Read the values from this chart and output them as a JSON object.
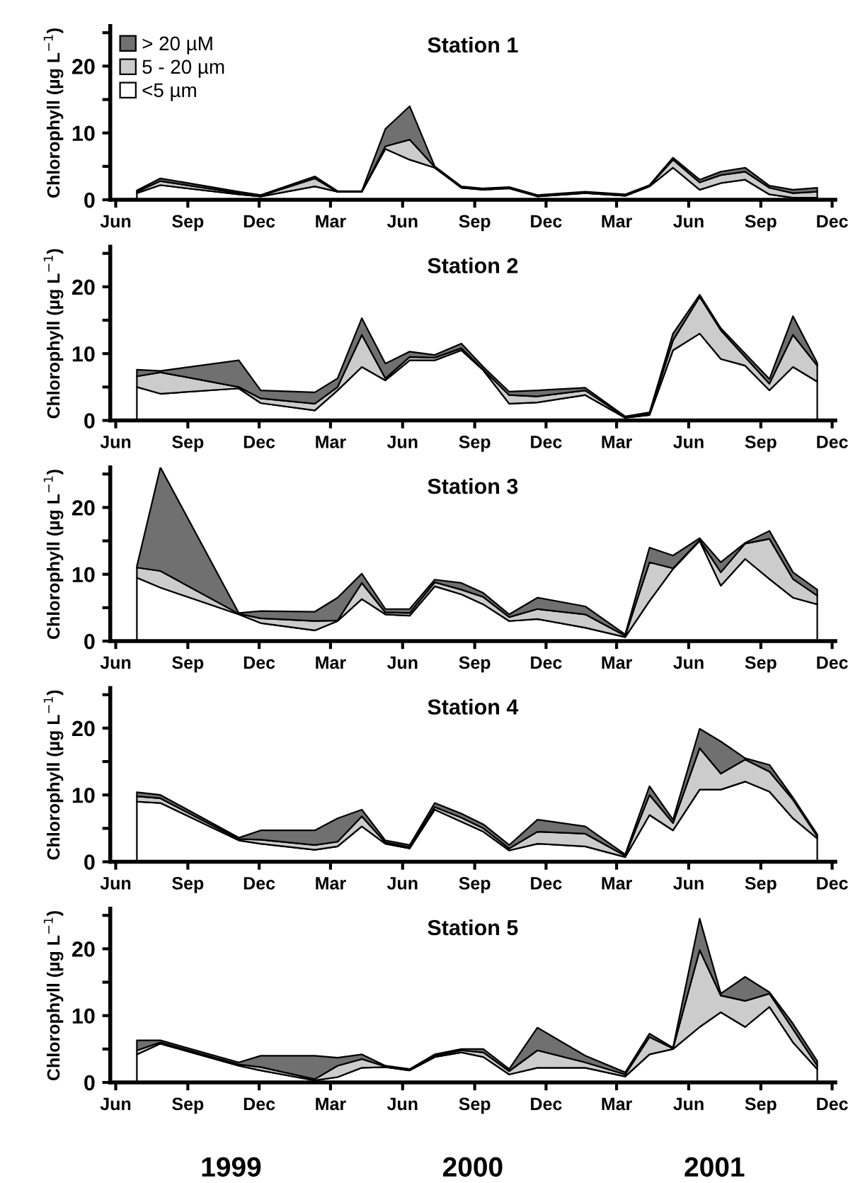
{
  "chart_data": [
    {
      "type": "area",
      "stacked": true,
      "title": "Station 1",
      "ylabel": "Chlorophyll (µg L$^{−1}$)",
      "legend": "top left",
      "x": [
        "1999-06-28",
        "1999-07-28",
        "1999-11-05",
        "1999-12-03",
        "2000-02-10",
        "2000-03-10",
        "2000-04-10",
        "2000-05-10",
        "2000-06-10",
        "2000-07-12",
        "2000-08-15",
        "2000-09-12",
        "2000-10-15",
        "2000-11-20",
        "2001-01-20",
        "2001-03-12",
        "2001-04-12",
        "2001-05-12",
        "2001-06-15",
        "2001-07-12",
        "2001-08-12",
        "2001-09-12",
        "2001-10-12",
        "2001-11-12"
      ],
      "series": [
        {
          "name": "<5 µm",
          "color": "#ffffff",
          "values": [
            1.0,
            2.2,
            0.8,
            0.5,
            2.0,
            1.2,
            1.2,
            7.6,
            6.0,
            4.8,
            1.8,
            1.5,
            1.7,
            0.5,
            1.0,
            0.6,
            2.0,
            4.8,
            1.5,
            2.5,
            3.0,
            0.8,
            0.3,
            0.3
          ]
        },
        {
          "name": "5 - 20 µm",
          "color": "#cccccc",
          "values": [
            0.2,
            0.6,
            0.2,
            0.1,
            1.2,
            0,
            0,
            0.4,
            3.0,
            0.1,
            0.1,
            0.1,
            0.1,
            0.1,
            0.1,
            0.1,
            0.1,
            1.2,
            1.1,
            1.2,
            1.2,
            1.0,
            0.7,
            0.9
          ]
        },
        {
          "name": "> 20 µM",
          "color": "#707070",
          "values": [
            0.2,
            0.4,
            0.2,
            0.1,
            0.3,
            0.1,
            0.1,
            2.6,
            5.0,
            0.1,
            0.1,
            0.1,
            0.1,
            0.1,
            0.1,
            0.1,
            0.1,
            0.3,
            0.4,
            0.5,
            0.6,
            0.3,
            0.5,
            0.6
          ]
        }
      ],
      "xlim": [
        "1999-05-25",
        "2001-12-05"
      ],
      "xticks": [
        {
          "value": "1999-06-01",
          "label": "Jun"
        },
        {
          "value": "1999-09-01",
          "label": "Sep"
        },
        {
          "value": "1999-12-01",
          "label": "Dec"
        },
        {
          "value": "2000-03-01",
          "label": "Mar"
        },
        {
          "value": "2000-06-01",
          "label": "Jun"
        },
        {
          "value": "2000-09-01",
          "label": "Sep"
        },
        {
          "value": "2000-12-01",
          "label": "Dec"
        },
        {
          "value": "2001-03-01",
          "label": "Mar"
        },
        {
          "value": "2001-06-01",
          "label": "Jun"
        },
        {
          "value": "2001-09-01",
          "label": "Sep"
        },
        {
          "value": "2001-12-01",
          "label": "Dec"
        }
      ],
      "ylim": [
        0,
        26
      ],
      "yticks": [
        0,
        {
          "value": 5,
          "label": null
        },
        10,
        {
          "value": 15,
          "label": null
        },
        20,
        {
          "value": 25,
          "label": null
        }
      ],
      "grid": false
    },
    {
      "type": "area",
      "stacked": true,
      "title": "Station 2",
      "ylabel": "Chlorophyll (µg L$^{−1}$)",
      "x": [
        "1999-06-28",
        "1999-07-28",
        "1999-11-05",
        "1999-12-03",
        "2000-02-10",
        "2000-03-10",
        "2000-04-10",
        "2000-05-10",
        "2000-06-10",
        "2000-07-12",
        "2000-08-15",
        "2000-09-12",
        "2000-10-15",
        "2000-11-20",
        "2001-01-20",
        "2001-03-12",
        "2001-04-12",
        "2001-05-12",
        "2001-06-15",
        "2001-07-12",
        "2001-08-12",
        "2001-09-12",
        "2001-10-12",
        "2001-11-12"
      ],
      "series": [
        {
          "color": "#ffffff",
          "values": [
            5.0,
            4.0,
            4.8,
            2.6,
            1.5,
            4.5,
            8.0,
            6.0,
            9.0,
            9.0,
            10.5,
            7.5,
            2.5,
            2.7,
            3.8,
            0.4,
            0.8,
            10.5,
            13.0,
            9.2,
            8.2,
            4.5,
            8.0,
            5.8
          ]
        },
        {
          "color": "#cccccc",
          "values": [
            1.6,
            3.2,
            0.2,
            0.7,
            1.0,
            0.5,
            4.8,
            0.3,
            0.5,
            0.4,
            0.3,
            0.1,
            1.3,
            0.9,
            0.7,
            0.1,
            0.2,
            1.5,
            5.5,
            4.3,
            1.3,
            1.0,
            4.8,
            2.4
          ]
        },
        {
          "color": "#707070",
          "values": [
            1.0,
            0.2,
            4.0,
            1.2,
            1.7,
            1.3,
            2.5,
            2.2,
            0.8,
            0.4,
            0.7,
            0.4,
            0.5,
            0.9,
            0.4,
            0.1,
            0.2,
            1.0,
            0.3,
            0.3,
            0.5,
            0.7,
            2.8,
            0.4
          ]
        }
      ],
      "xlim": [
        "1999-05-25",
        "2001-12-05"
      ],
      "xticks": [
        {
          "value": "1999-06-01",
          "label": "Jun"
        },
        {
          "value": "1999-09-01",
          "label": "Sep"
        },
        {
          "value": "1999-12-01",
          "label": "Dec"
        },
        {
          "value": "2000-03-01",
          "label": "Mar"
        },
        {
          "value": "2000-06-01",
          "label": "Jun"
        },
        {
          "value": "2000-09-01",
          "label": "Sep"
        },
        {
          "value": "2000-12-01",
          "label": "Dec"
        },
        {
          "value": "2001-03-01",
          "label": "Mar"
        },
        {
          "value": "2001-06-01",
          "label": "Jun"
        },
        {
          "value": "2001-09-01",
          "label": "Sep"
        },
        {
          "value": "2001-12-01",
          "label": "Dec"
        }
      ],
      "ylim": [
        0,
        26
      ],
      "yticks": [
        0,
        {
          "value": 5,
          "label": null
        },
        10,
        {
          "value": 15,
          "label": null
        },
        20,
        {
          "value": 25,
          "label": null
        }
      ],
      "grid": false
    },
    {
      "type": "area",
      "stacked": true,
      "title": "Station 3",
      "ylabel": "Chlorophyll (µg L$^{−1}$)",
      "x": [
        "1999-06-28",
        "1999-07-28",
        "1999-11-05",
        "1999-12-03",
        "2000-02-10",
        "2000-03-10",
        "2000-04-10",
        "2000-05-10",
        "2000-06-10",
        "2000-07-12",
        "2000-08-15",
        "2000-09-12",
        "2000-10-15",
        "2000-11-20",
        "2001-01-20",
        "2001-03-12",
        "2001-04-12",
        "2001-05-12",
        "2001-06-15",
        "2001-07-12",
        "2001-08-12",
        "2001-09-12",
        "2001-10-12",
        "2001-11-12"
      ],
      "series": [
        {
          "color": "#ffffff",
          "values": [
            9.5,
            8.0,
            4.0,
            2.7,
            1.6,
            3.0,
            6.3,
            4.0,
            3.8,
            8.2,
            7.0,
            5.5,
            3.0,
            3.3,
            2.0,
            0.6,
            6.0,
            10.8,
            15.0,
            8.3,
            12.3,
            9.3,
            6.5,
            5.5
          ]
        },
        {
          "color": "#cccccc",
          "values": [
            1.5,
            2.5,
            0.1,
            0.7,
            1.4,
            0.1,
            2.4,
            0.3,
            0.4,
            0.6,
            0.7,
            1.1,
            0.6,
            1.5,
            2.0,
            0.2,
            5.8,
            0.1,
            0.1,
            2.0,
            2.3,
            6.0,
            2.8,
            1.3
          ]
        },
        {
          "color": "#707070",
          "values": [
            0.2,
            15.5,
            0.1,
            1.1,
            1.4,
            3.4,
            1.4,
            0.5,
            0.6,
            0.4,
            1.0,
            0.6,
            0.4,
            1.7,
            1.2,
            0.2,
            2.2,
            1.9,
            0.3,
            1.5,
            0.1,
            1.2,
            1.0,
            0.9
          ]
        }
      ],
      "xlim": [
        "1999-05-25",
        "2001-12-05"
      ],
      "xticks": [
        {
          "value": "1999-06-01",
          "label": "Jun"
        },
        {
          "value": "1999-09-01",
          "label": "Sep"
        },
        {
          "value": "1999-12-01",
          "label": "Dec"
        },
        {
          "value": "2000-03-01",
          "label": "Mar"
        },
        {
          "value": "2000-06-01",
          "label": "Jun"
        },
        {
          "value": "2000-09-01",
          "label": "Sep"
        },
        {
          "value": "2000-12-01",
          "label": "Dec"
        },
        {
          "value": "2001-03-01",
          "label": "Mar"
        },
        {
          "value": "2001-06-01",
          "label": "Jun"
        },
        {
          "value": "2001-09-01",
          "label": "Sep"
        },
        {
          "value": "2001-12-01",
          "label": "Dec"
        }
      ],
      "ylim": [
        0,
        26
      ],
      "yticks": [
        0,
        {
          "value": 5,
          "label": null
        },
        10,
        {
          "value": 15,
          "label": null
        },
        20,
        {
          "value": 25,
          "label": null
        }
      ],
      "grid": false
    },
    {
      "type": "area",
      "stacked": true,
      "title": "Station 4",
      "ylabel": "Chlorophyll (µg L$^{−1}$)",
      "x": [
        "1999-06-28",
        "1999-07-28",
        "1999-11-05",
        "1999-12-03",
        "2000-02-10",
        "2000-03-10",
        "2000-04-10",
        "2000-05-10",
        "2000-06-10",
        "2000-07-12",
        "2000-08-15",
        "2000-09-12",
        "2000-10-15",
        "2000-11-20",
        "2001-01-20",
        "2001-03-12",
        "2001-04-12",
        "2001-05-12",
        "2001-06-15",
        "2001-07-12",
        "2001-08-12",
        "2001-09-12",
        "2001-10-12",
        "2001-11-12"
      ],
      "series": [
        {
          "color": "#ffffff",
          "values": [
            9.0,
            8.8,
            3.2,
            2.7,
            1.8,
            2.3,
            5.3,
            2.7,
            2.0,
            7.8,
            6.0,
            4.5,
            1.7,
            2.7,
            2.3,
            0.7,
            7.0,
            4.7,
            10.8,
            10.8,
            12.0,
            10.5,
            6.5,
            3.5
          ]
        },
        {
          "color": "#cccccc",
          "values": [
            0.8,
            0.7,
            0.2,
            0.6,
            0.7,
            0.7,
            1.5,
            0.2,
            0.2,
            0.4,
            0.6,
            0.5,
            0.3,
            1.8,
            1.9,
            0.2,
            3.0,
            1.1,
            6.2,
            2.4,
            3.3,
            3.0,
            2.8,
            0.3
          ]
        },
        {
          "color": "#707070",
          "values": [
            0.6,
            0.5,
            0.2,
            1.4,
            2.2,
            3.5,
            1.0,
            0.3,
            0.3,
            0.6,
            0.6,
            0.6,
            0.5,
            1.8,
            1.1,
            0.2,
            1.3,
            0.5,
            2.9,
            4.8,
            0.2,
            1.0,
            0.3,
            0.3
          ]
        }
      ],
      "xlim": [
        "1999-05-25",
        "2001-12-05"
      ],
      "xticks": [
        {
          "value": "1999-06-01",
          "label": "Jun"
        },
        {
          "value": "1999-09-01",
          "label": "Sep"
        },
        {
          "value": "1999-12-01",
          "label": "Dec"
        },
        {
          "value": "2000-03-01",
          "label": "Mar"
        },
        {
          "value": "2000-06-01",
          "label": "Jun"
        },
        {
          "value": "2000-09-01",
          "label": "Sep"
        },
        {
          "value": "2000-12-01",
          "label": "Dec"
        },
        {
          "value": "2001-03-01",
          "label": "Mar"
        },
        {
          "value": "2001-06-01",
          "label": "Jun"
        },
        {
          "value": "2001-09-01",
          "label": "Sep"
        },
        {
          "value": "2001-12-01",
          "label": "Dec"
        }
      ],
      "ylim": [
        0,
        26
      ],
      "yticks": [
        0,
        {
          "value": 5,
          "label": null
        },
        10,
        {
          "value": 15,
          "label": null
        },
        20,
        {
          "value": 25,
          "label": null
        }
      ],
      "grid": false
    },
    {
      "type": "area",
      "stacked": true,
      "title": "Station 5",
      "ylabel": "Chlorophyll (µg L$^{−1}$)",
      "annotations": [
        "1999",
        "2000",
        "2001"
      ],
      "x": [
        "1999-06-28",
        "1999-07-28",
        "1999-11-05",
        "1999-12-03",
        "2000-02-10",
        "2000-03-10",
        "2000-04-10",
        "2000-05-10",
        "2000-06-10",
        "2000-07-12",
        "2000-08-15",
        "2000-09-12",
        "2000-10-15",
        "2000-11-20",
        "2001-01-20",
        "2001-03-12",
        "2001-04-12",
        "2001-05-12",
        "2001-06-15",
        "2001-07-12",
        "2001-08-12",
        "2001-09-12",
        "2001-10-12",
        "2001-11-12"
      ],
      "series": [
        {
          "color": "#ffffff",
          "values": [
            4.2,
            5.8,
            2.5,
            1.8,
            0.3,
            0.8,
            2.2,
            2.3,
            1.8,
            3.8,
            4.5,
            3.8,
            1.2,
            2.2,
            2.2,
            0.9,
            4.2,
            5.0,
            8.3,
            10.5,
            8.3,
            11.3,
            6.0,
            2.0
          ]
        },
        {
          "color": "#cccccc",
          "values": [
            0.6,
            0.2,
            0.2,
            0.5,
            0.2,
            1.7,
            1.3,
            0.1,
            0.1,
            0.2,
            0.3,
            0.7,
            0.5,
            2.6,
            0.8,
            0.3,
            2.6,
            0.1,
            11.5,
            2.5,
            3.9,
            2.0,
            2.0,
            0.5
          ]
        },
        {
          "color": "#707070",
          "values": [
            1.5,
            0.3,
            0.3,
            1.7,
            3.5,
            1.2,
            0.7,
            0.1,
            0.1,
            0.2,
            0.2,
            0.5,
            0.3,
            3.4,
            1.0,
            0.3,
            0.5,
            0.1,
            4.7,
            0.3,
            3.6,
            0.2,
            0.8,
            0.7
          ]
        }
      ],
      "xlim": [
        "1999-05-25",
        "2001-12-05"
      ],
      "xticks": [
        {
          "value": "1999-06-01",
          "label": "Jun"
        },
        {
          "value": "1999-09-01",
          "label": "Sep"
        },
        {
          "value": "1999-12-01",
          "label": "Dec"
        },
        {
          "value": "2000-03-01",
          "label": "Mar"
        },
        {
          "value": "2000-06-01",
          "label": "Jun"
        },
        {
          "value": "2000-09-01",
          "label": "Sep"
        },
        {
          "value": "2000-12-01",
          "label": "Dec"
        },
        {
          "value": "2001-03-01",
          "label": "Mar"
        },
        {
          "value": "2001-06-01",
          "label": "Jun"
        },
        {
          "value": "2001-09-01",
          "label": "Sep"
        },
        {
          "value": "2001-12-01",
          "label": "Dec"
        }
      ],
      "ylim": [
        0,
        26
      ],
      "yticks": [
        0,
        {
          "value": 5,
          "label": null
        },
        10,
        {
          "value": 15,
          "label": null
        },
        20,
        {
          "value": 25,
          "label": null
        }
      ],
      "grid": false
    }
  ]
}
